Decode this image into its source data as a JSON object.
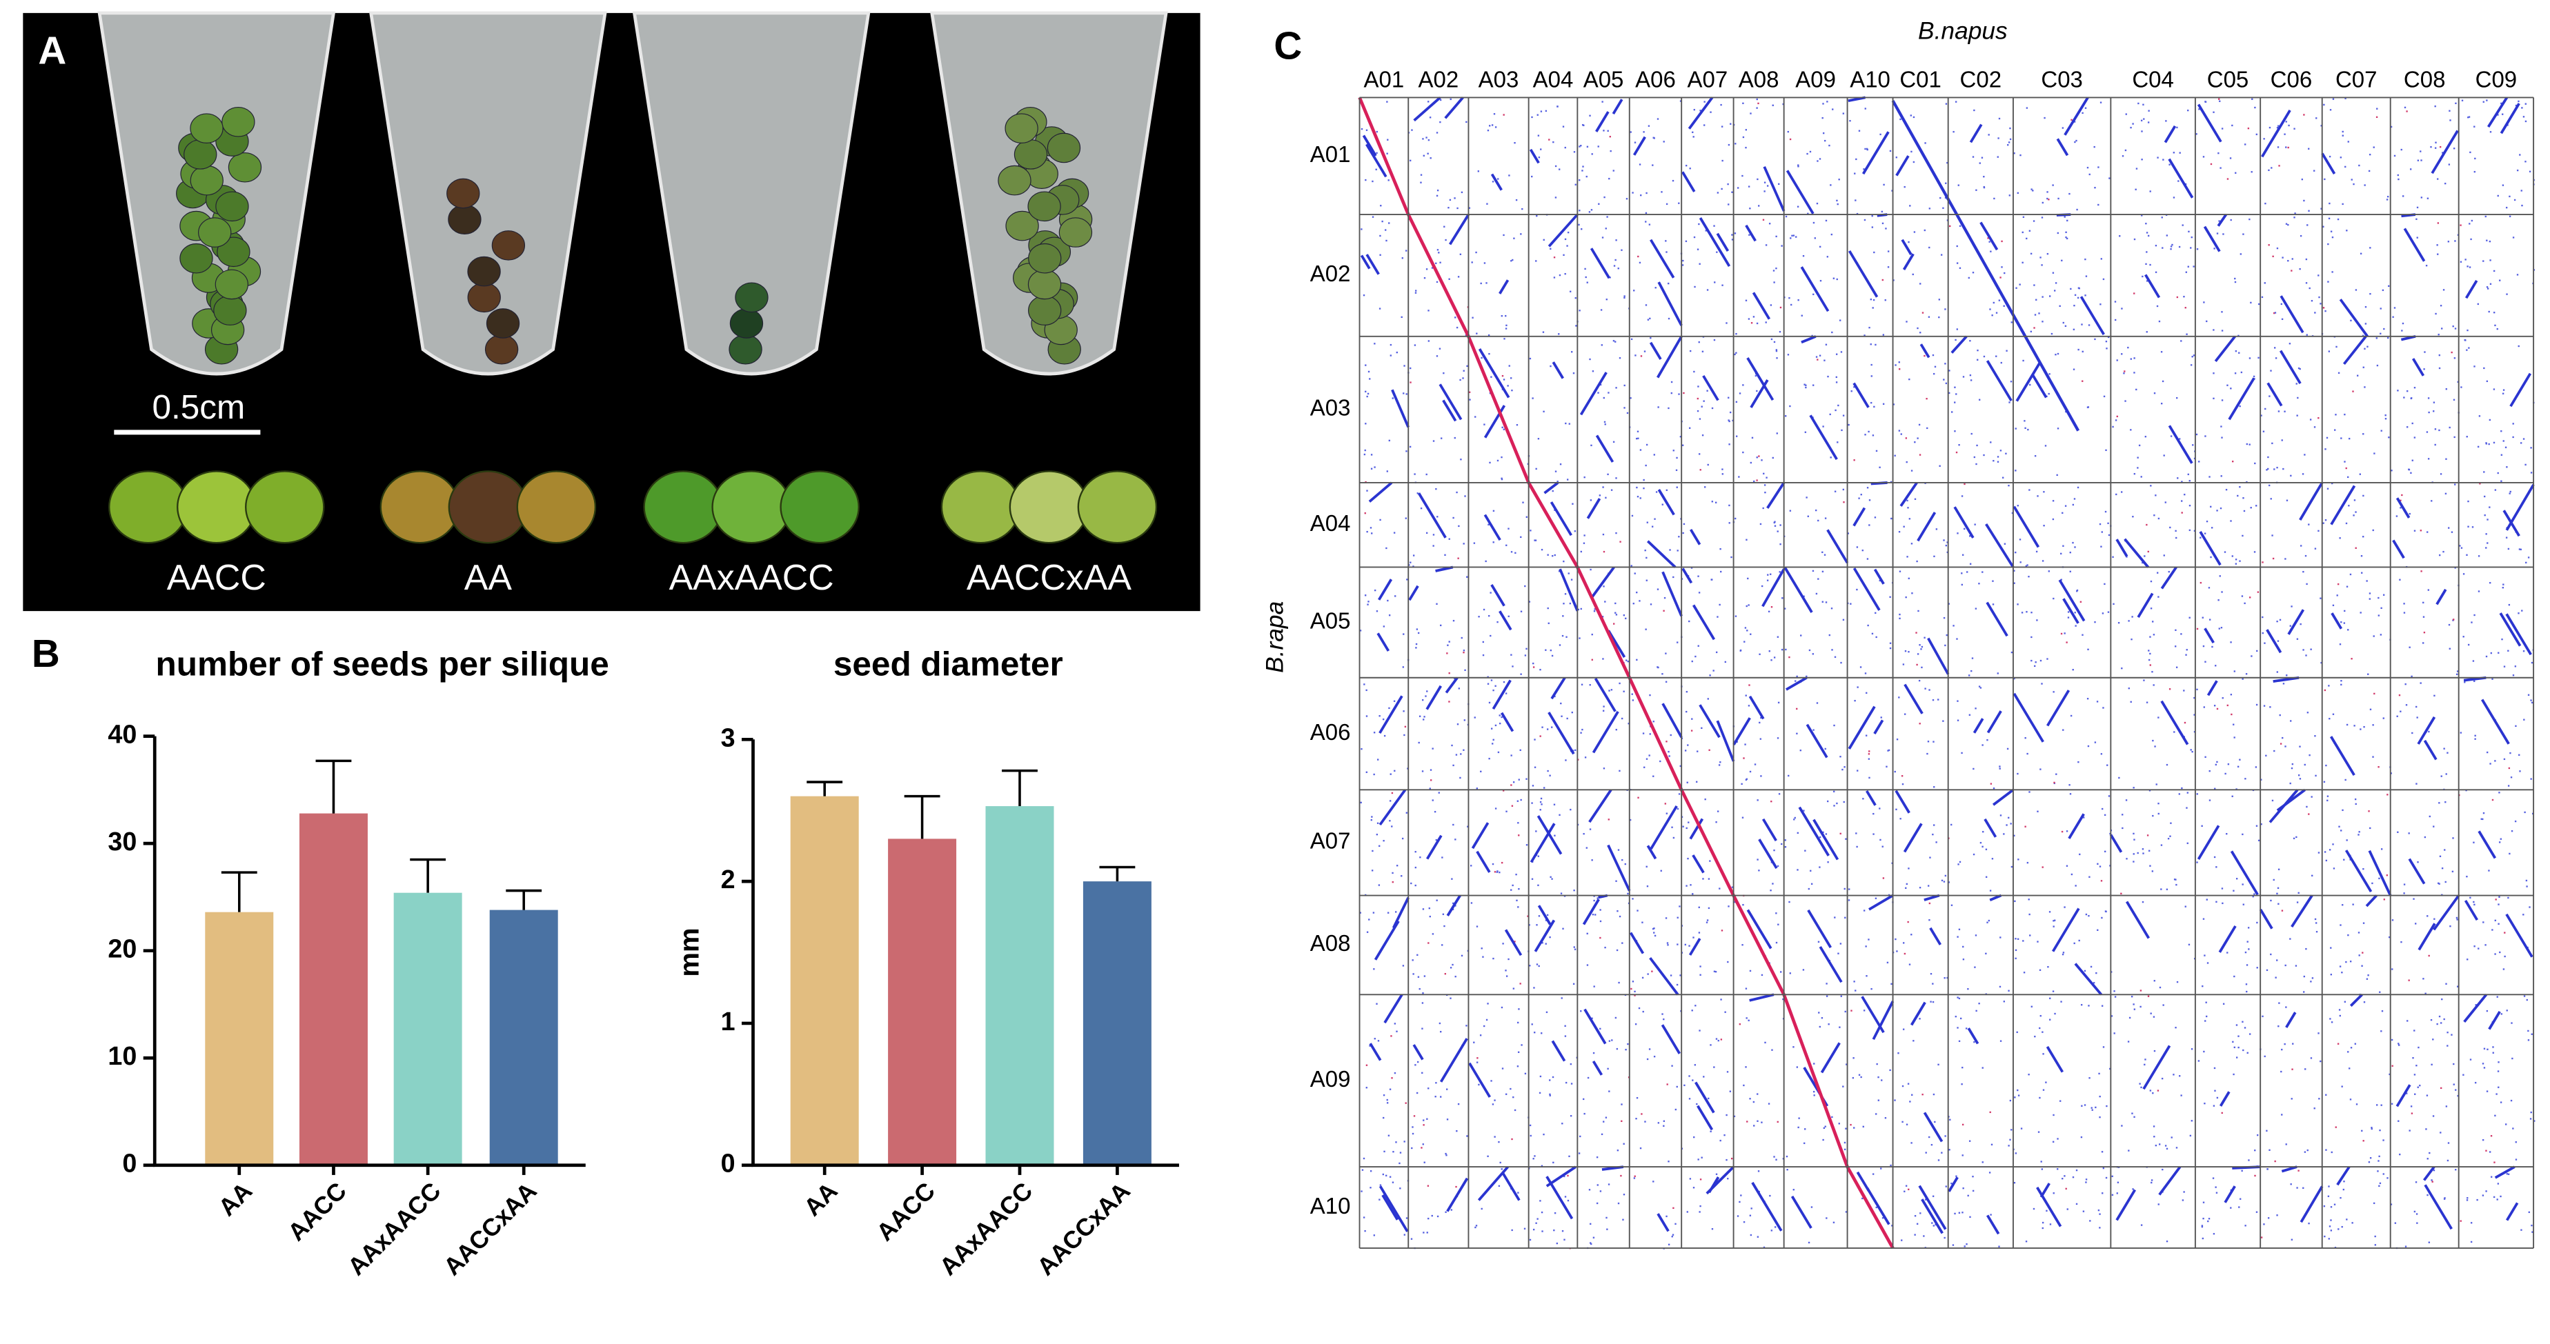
{
  "panel_labels": [
    "A",
    "B",
    "C"
  ],
  "photo": {
    "scale_bar": "0.5cm",
    "samples": [
      "AACC",
      "AA",
      "AAxAACC",
      "AACCxAA"
    ]
  },
  "chart_data": [
    {
      "type": "bar",
      "title": "number of seeds per silique",
      "categories": [
        "AA",
        "AACC",
        "AAxAACC",
        "AACCxAA"
      ],
      "values": [
        23.6,
        32.8,
        25.4,
        23.8
      ],
      "errors": [
        3.7,
        4.9,
        3.1,
        1.8
      ],
      "colors": [
        "#e2bd80",
        "#cb6a70",
        "#8ad2c6",
        "#4a72a3"
      ],
      "ylim": [
        0,
        40
      ],
      "yticks": [
        0,
        10,
        20,
        30,
        40
      ]
    },
    {
      "type": "bar",
      "title": "seed diameter",
      "y_label": "mm",
      "categories": [
        "AA",
        "AACC",
        "AAxAACC",
        "AACCxAA"
      ],
      "values": [
        2.6,
        2.3,
        2.53,
        2.0
      ],
      "errors": [
        0.1,
        0.3,
        0.25,
        0.1
      ],
      "colors": [
        "#e2bd80",
        "#cb6a70",
        "#8ad2c6",
        "#4a72a3"
      ],
      "ylim": [
        0,
        3
      ],
      "yticks": [
        0,
        1,
        2,
        3
      ]
    }
  ],
  "dotplot": {
    "x_label": "B.napus",
    "y_label": "B.rapa",
    "x_chromosomes": [
      "A01",
      "A02",
      "A03",
      "A04",
      "A05",
      "A06",
      "A07",
      "A08",
      "A09",
      "A10",
      "C01",
      "C02",
      "C03",
      "C04",
      "C05",
      "C06",
      "C07",
      "C08",
      "C09"
    ],
    "y_chromosomes": [
      "A01",
      "A02",
      "A03",
      "A04",
      "A05",
      "A06",
      "A07",
      "A08",
      "A09",
      "A10"
    ]
  }
}
